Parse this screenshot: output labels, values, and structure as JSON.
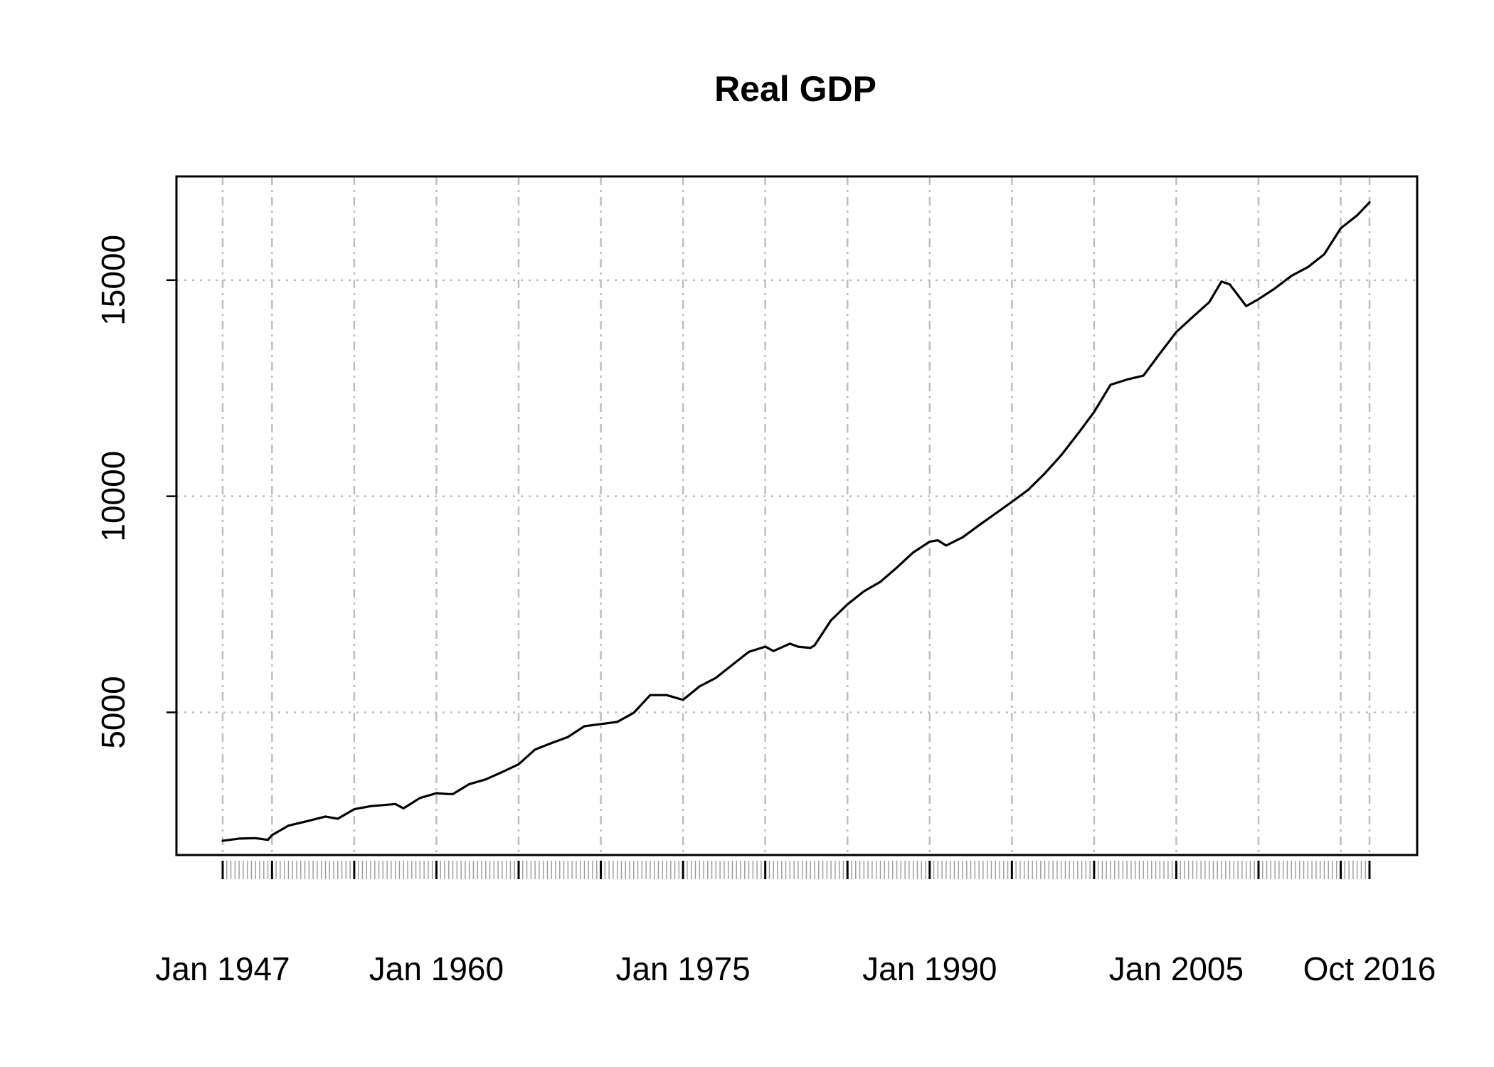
{
  "chart_data": {
    "type": "line",
    "title": "Real GDP",
    "xlabel": "",
    "ylabel": "",
    "x_range": [
      "1947-01",
      "2016-10"
    ],
    "ylim": [
      1700,
      17400
    ],
    "y_ticks": [
      5000,
      10000,
      15000
    ],
    "y_tick_labels": [
      "5000",
      "10000",
      "15000"
    ],
    "x_ticks": [
      "1947-01",
      "1960-01",
      "1975-01",
      "1990-01",
      "2005-01",
      "2016-10"
    ],
    "x_tick_labels": [
      "Jan 1947",
      "Jan 1960",
      "Jan 1975",
      "Jan 1990",
      "Jan 2005",
      "Oct 2016"
    ],
    "x_gridlines": [
      "1947-01",
      "1950-01",
      "1955-01",
      "1960-01",
      "1965-01",
      "1970-01",
      "1975-01",
      "1980-01",
      "1985-01",
      "1990-01",
      "1995-01",
      "2000-01",
      "2005-01",
      "2010-01",
      "2015-01",
      "2016-10"
    ],
    "grid": true,
    "grid_color": "#bebebe",
    "line_color": "#000000",
    "series": [
      {
        "x": [
          "1947-01",
          "1948-01",
          "1949-01",
          "1949-10",
          "1950-01",
          "1951-01",
          "1952-01",
          "1953-04",
          "1954-01",
          "1955-01",
          "1956-01",
          "1957-07",
          "1958-01",
          "1959-01",
          "1960-01",
          "1960-10",
          "1961-01",
          "1962-01",
          "1963-01",
          "1964-01",
          "1965-01",
          "1966-01",
          "1967-01",
          "1968-01",
          "1969-01",
          "1970-01",
          "1971-01",
          "1972-01",
          "1973-01",
          "1974-01",
          "1975-01",
          "1976-01",
          "1977-01",
          "1978-01",
          "1979-01",
          "1980-01",
          "1980-07",
          "1981-07",
          "1982-01",
          "1982-10",
          "1983-01",
          "1984-01",
          "1985-01",
          "1986-01",
          "1987-01",
          "1988-01",
          "1989-01",
          "1990-01",
          "1990-07",
          "1991-01",
          "1992-01",
          "1993-01",
          "1994-01",
          "1995-01",
          "1996-01",
          "1997-01",
          "1998-01",
          "1999-01",
          "2000-01",
          "2001-01",
          "2002-01",
          "2003-01",
          "2004-01",
          "2005-01",
          "2006-01",
          "2007-01",
          "2007-10",
          "2008-04",
          "2009-04",
          "2010-01",
          "2011-01",
          "2012-01",
          "2013-01",
          "2014-01",
          "2015-01",
          "2016-01",
          "2016-10"
        ],
        "y": [
          2030,
          2080,
          2090,
          2050,
          2160,
          2380,
          2470,
          2590,
          2540,
          2760,
          2830,
          2880,
          2780,
          3020,
          3130,
          3110,
          3110,
          3340,
          3450,
          3620,
          3800,
          4140,
          4290,
          4430,
          4680,
          4730,
          4780,
          4990,
          5400,
          5400,
          5290,
          5600,
          5800,
          6100,
          6400,
          6520,
          6420,
          6590,
          6520,
          6490,
          6550,
          7130,
          7500,
          7800,
          8020,
          8350,
          8700,
          8950,
          8980,
          8860,
          9050,
          9330,
          9600,
          9870,
          10150,
          10530,
          10950,
          11440,
          11950,
          12580,
          12700,
          12790,
          13300,
          13800,
          14150,
          14490,
          14970,
          14900,
          14400,
          14560,
          14810,
          15100,
          15300,
          15600,
          16200,
          16500,
          16800
        ]
      }
    ]
  }
}
